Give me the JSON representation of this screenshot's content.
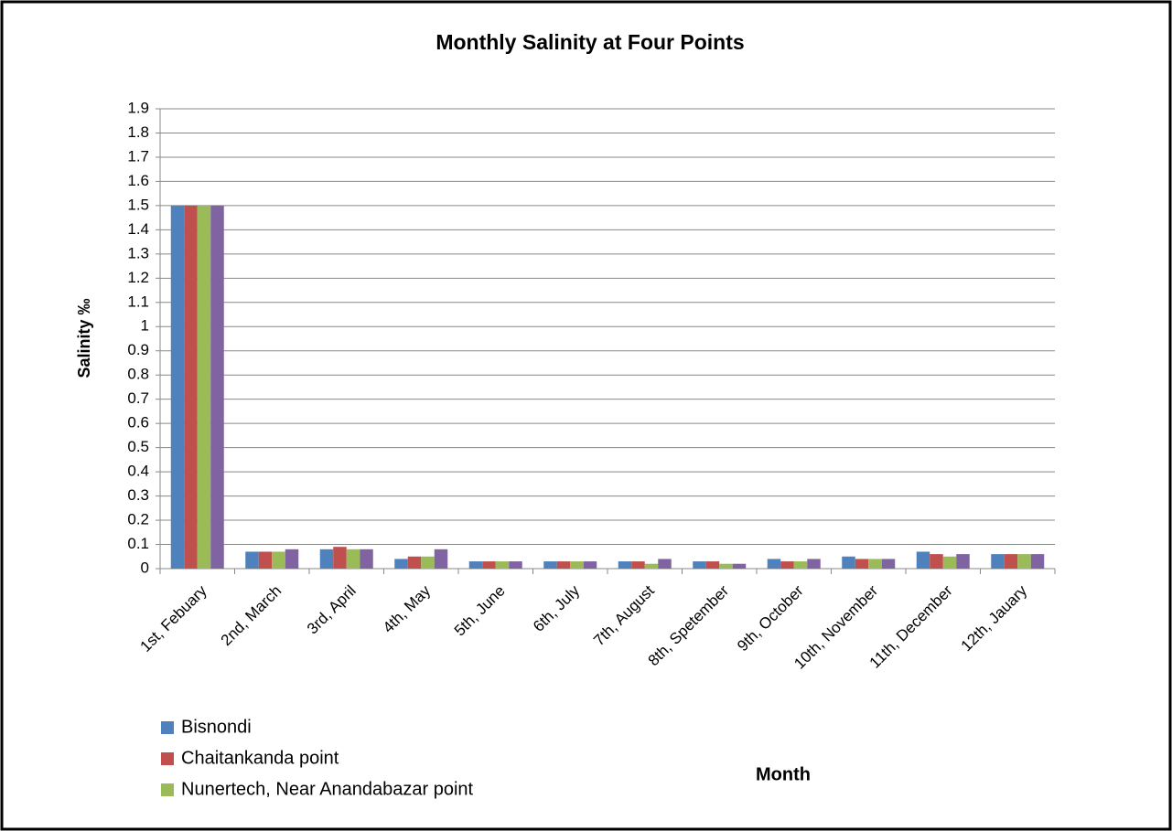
{
  "chart_data": {
    "type": "bar",
    "title": "Monthly Salinity at Four Points",
    "x_label": "Month",
    "y_label": "Salinity ‰",
    "categories": [
      "1st, Febuary",
      "2nd, March",
      "3rd, April",
      "4th, May",
      "5th, June",
      "6th, July",
      "7th, August",
      "8th, Spetember",
      "9th, October",
      "10th, November",
      "11th, December",
      "12th, Jauary"
    ],
    "series": [
      {
        "name": "Bisnondi",
        "color": "#4f81bd",
        "values": [
          1.5,
          0.07,
          0.08,
          0.04,
          0.03,
          0.03,
          0.03,
          0.03,
          0.04,
          0.05,
          0.07,
          0.06
        ]
      },
      {
        "name": "Chaitankanda point",
        "color": "#c0504d",
        "values": [
          1.5,
          0.07,
          0.09,
          0.05,
          0.03,
          0.03,
          0.03,
          0.03,
          0.03,
          0.04,
          0.06,
          0.06
        ]
      },
      {
        "name": "Nunertech, Near Anandabazar point",
        "color": "#9bbb59",
        "values": [
          1.5,
          0.07,
          0.08,
          0.05,
          0.03,
          0.03,
          0.02,
          0.02,
          0.03,
          0.04,
          0.05,
          0.06
        ]
      },
      {
        "color": "#8064a2",
        "values": [
          1.5,
          0.08,
          0.08,
          0.08,
          0.03,
          0.03,
          0.04,
          0.02,
          0.04,
          0.04,
          0.06,
          0.06
        ]
      }
    ],
    "ylim": [
      0,
      1.9
    ],
    "yticks": [
      0,
      0.1,
      0.2,
      0.3,
      0.4,
      0.5,
      0.6,
      0.7,
      0.8,
      0.9,
      1,
      1.1,
      1.2,
      1.3,
      1.4,
      1.5,
      1.6,
      1.7,
      1.8,
      1.9
    ],
    "grid": true,
    "legend": "bottom-left"
  }
}
